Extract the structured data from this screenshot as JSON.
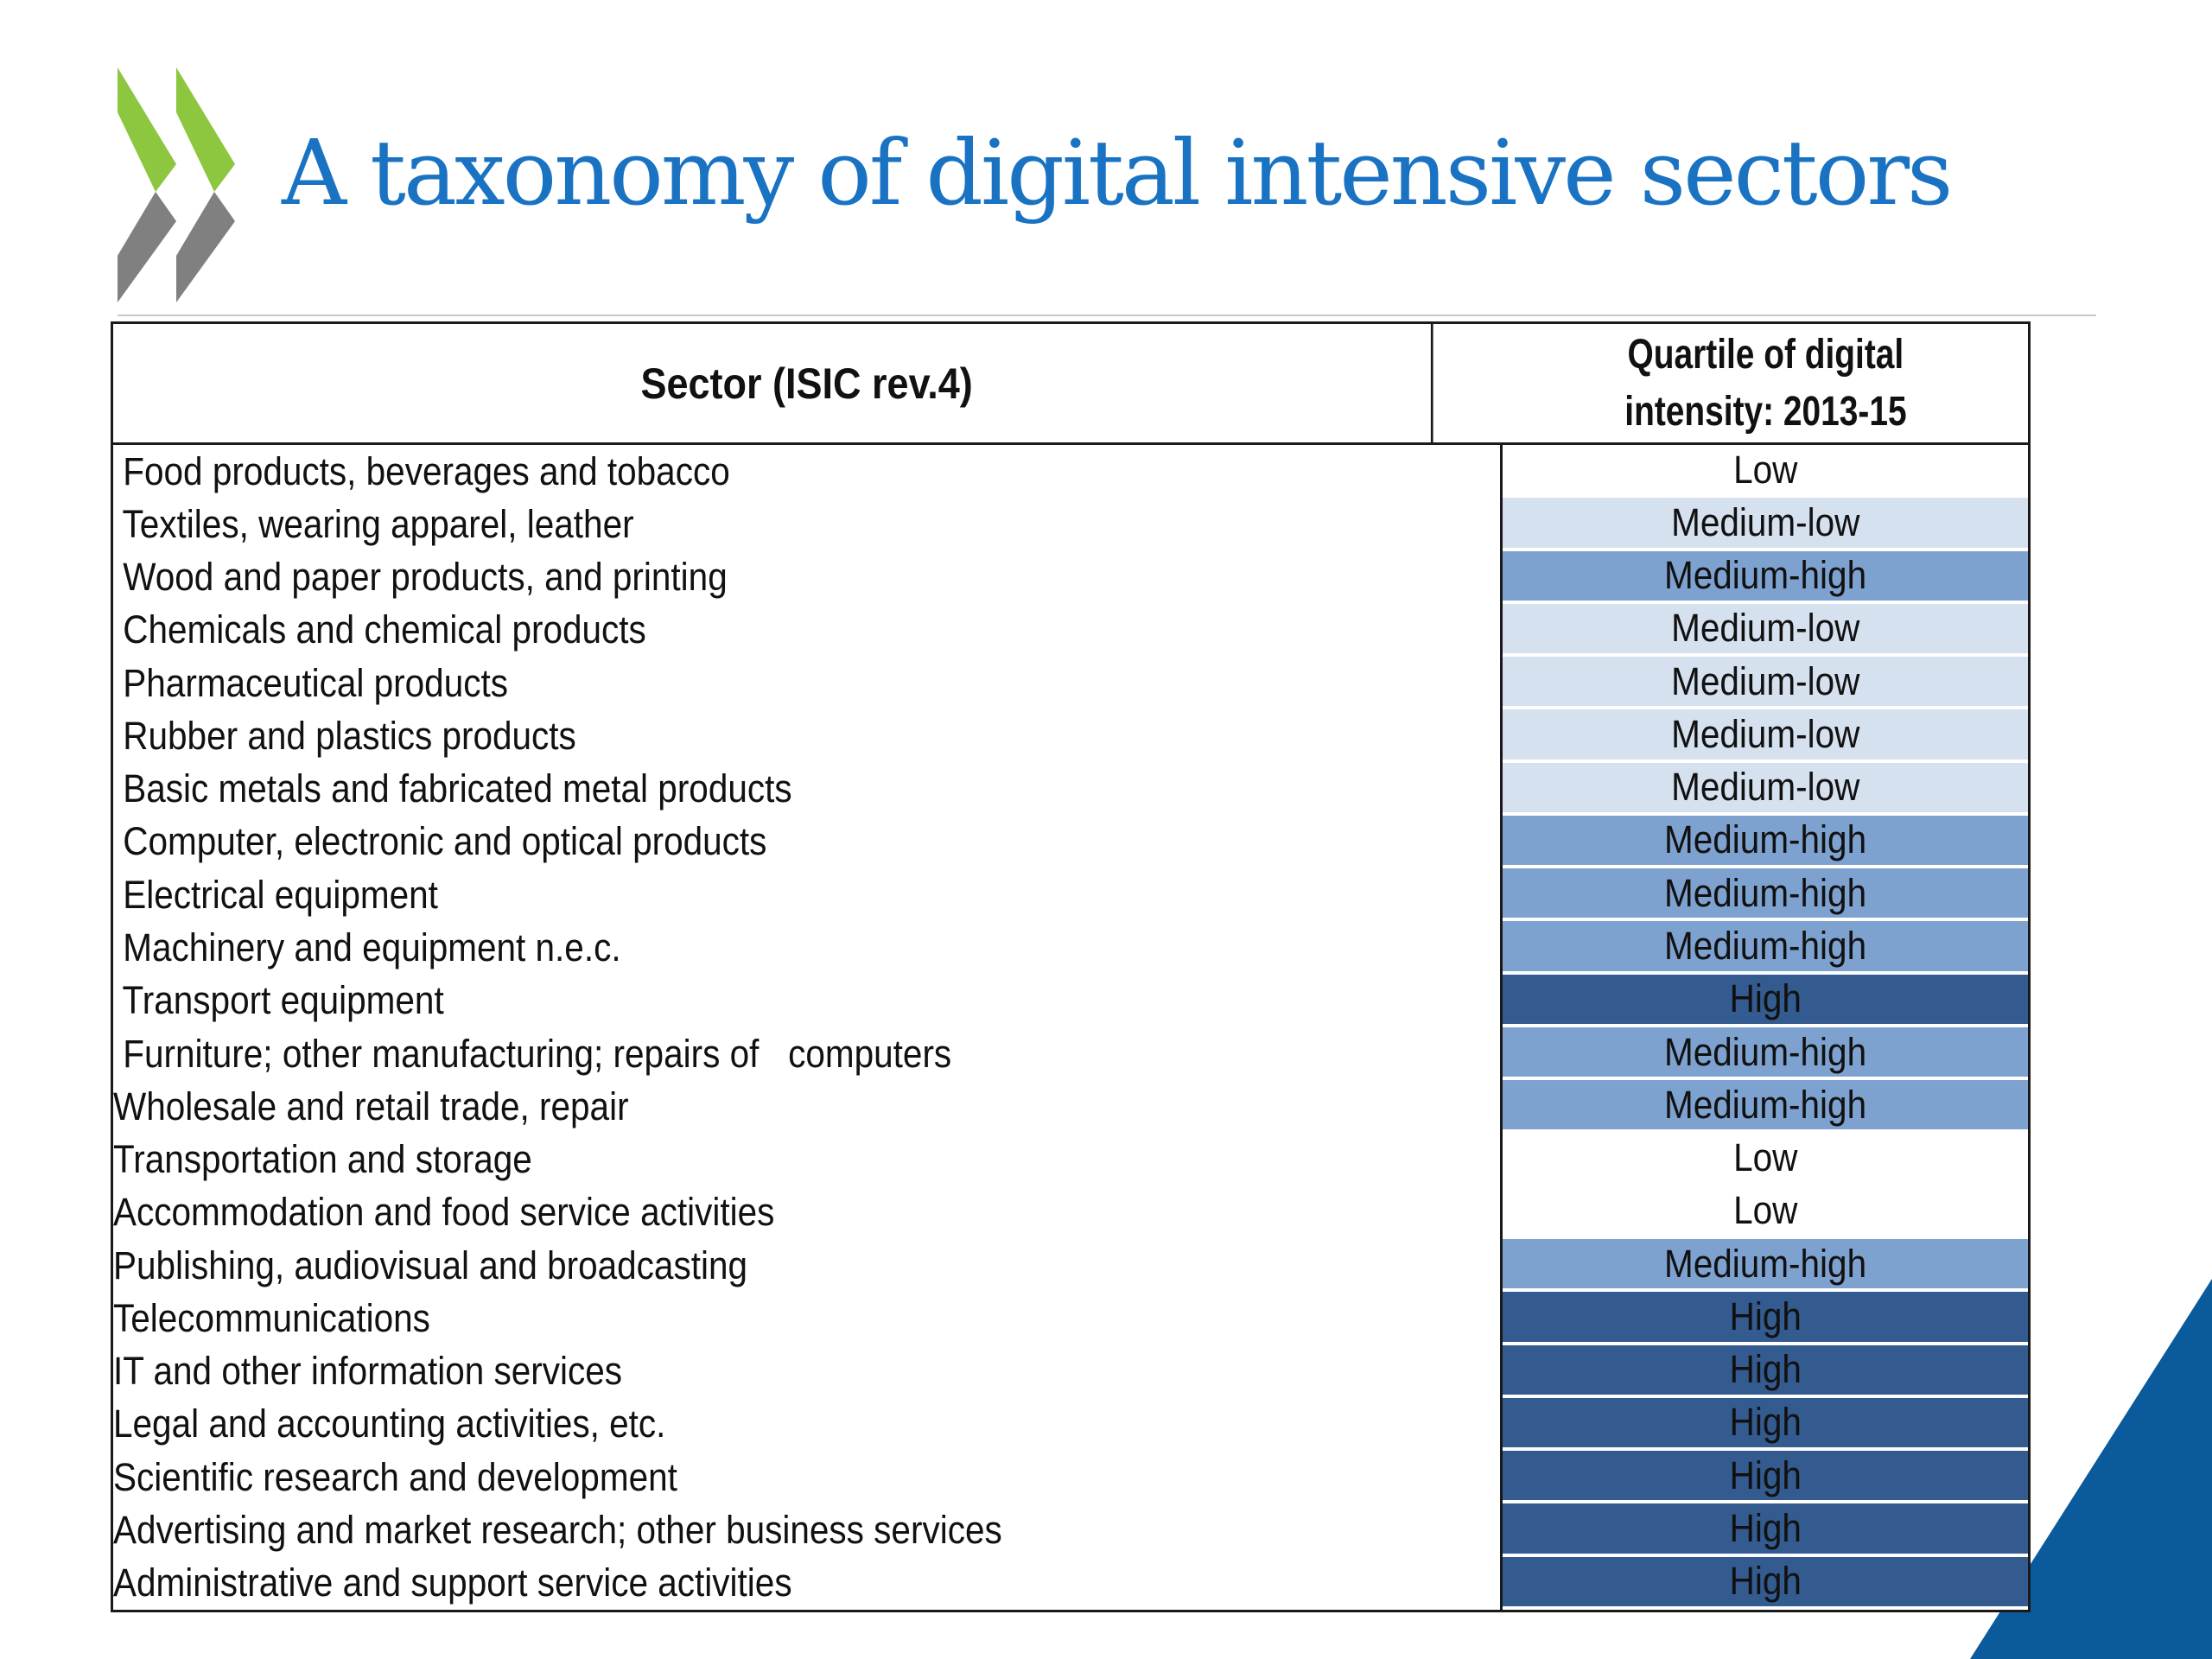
{
  "title": "A taxonomy of digital intensive sectors",
  "colors": {
    "title": "#1a73c2",
    "logo_green": "#8dc63f",
    "logo_gray": "#808080",
    "corner_blue": "#0a5a9c",
    "Low": "#ffffff",
    "Medium-low": "#d6e1ef",
    "Medium-high": "#7ea2d0",
    "High": "#335b8f"
  },
  "table": {
    "headers": {
      "sector": "Sector (ISIC rev.4)",
      "quartile_line1": "Quartile of digital",
      "quartile_line2": "intensity: 2013-15"
    },
    "rows": [
      {
        "sector": " Food products, beverages and tobacco",
        "quartile": "Low"
      },
      {
        "sector": " Textiles, wearing apparel, leather",
        "quartile": "Medium-low"
      },
      {
        "sector": " Wood and paper products, and printing",
        "quartile": "Medium-high"
      },
      {
        "sector": " Chemicals and chemical products",
        "quartile": "Medium-low"
      },
      {
        "sector": " Pharmaceutical products",
        "quartile": "Medium-low"
      },
      {
        "sector": " Rubber and plastics products",
        "quartile": "Medium-low"
      },
      {
        "sector": " Basic metals and fabricated metal products",
        "quartile": "Medium-low"
      },
      {
        "sector": " Computer, electronic and optical products",
        "quartile": "Medium-high"
      },
      {
        "sector": " Electrical equipment",
        "quartile": "Medium-high"
      },
      {
        "sector": " Machinery and equipment n.e.c.",
        "quartile": "Medium-high"
      },
      {
        "sector": " Transport equipment",
        "quartile": "High"
      },
      {
        "sector": " Furniture; other manufacturing; repairs of   computers",
        "quartile": "Medium-high"
      },
      {
        "sector": "Wholesale and retail trade, repair",
        "quartile": "Medium-high"
      },
      {
        "sector": "Transportation and storage",
        "quartile": "Low"
      },
      {
        "sector": "Accommodation and food service activities",
        "quartile": "Low"
      },
      {
        "sector": "Publishing, audiovisual and broadcasting",
        "quartile": "Medium-high"
      },
      {
        "sector": "Telecommunications",
        "quartile": "High"
      },
      {
        "sector": "IT and other information services",
        "quartile": "High"
      },
      {
        "sector": "Legal and accounting activities, etc.",
        "quartile": "High"
      },
      {
        "sector": "Scientific research and development",
        "quartile": "High"
      },
      {
        "sector": "Advertising and market research; other business services",
        "quartile": "High"
      },
      {
        "sector": "Administrative and support service activities",
        "quartile": "High"
      }
    ]
  }
}
